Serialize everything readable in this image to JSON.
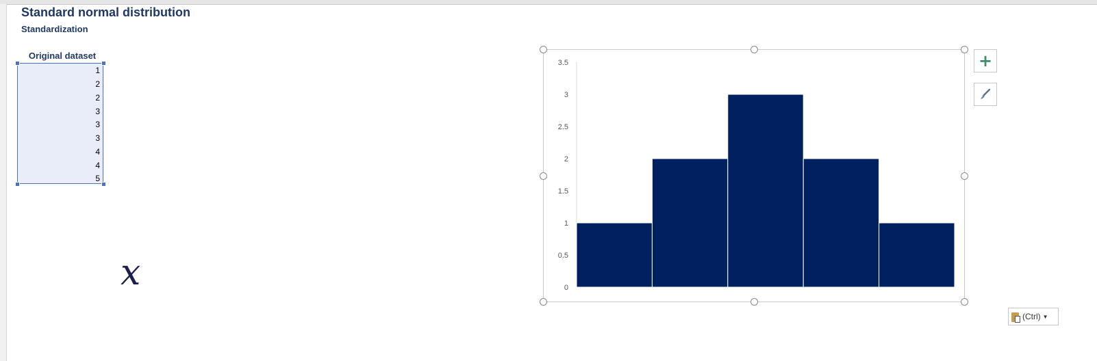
{
  "sheet": {
    "title": "Standard normal distribution",
    "subtitle": "Standardization"
  },
  "dataset": {
    "header": "Original dataset",
    "values": [
      "1",
      "2",
      "2",
      "3",
      "3",
      "3",
      "4",
      "4",
      "5"
    ]
  },
  "formula": {
    "symbol": "𝑥"
  },
  "chart_buttons": {
    "add_element_icon": "plus-icon",
    "style_icon": "paintbrush-icon"
  },
  "paste_options": {
    "label": "(Ctrl)",
    "icon": "clipboard-icon"
  },
  "colors": {
    "header_text": "#1f3864",
    "bar_fill": "#002060",
    "selection": "#4a72c4"
  },
  "chart_data": {
    "type": "bar",
    "categories": [
      "",
      "",
      "",
      "",
      ""
    ],
    "values": [
      1,
      2,
      3,
      2,
      1
    ],
    "title": "",
    "xlabel": "",
    "ylabel": "",
    "ylim": [
      0,
      3.5
    ],
    "y_ticks": [
      "0",
      "0.5",
      "1",
      "1.5",
      "2",
      "2.5",
      "3",
      "3.5"
    ],
    "grid": false,
    "legend": "none",
    "gap_width": 0
  }
}
